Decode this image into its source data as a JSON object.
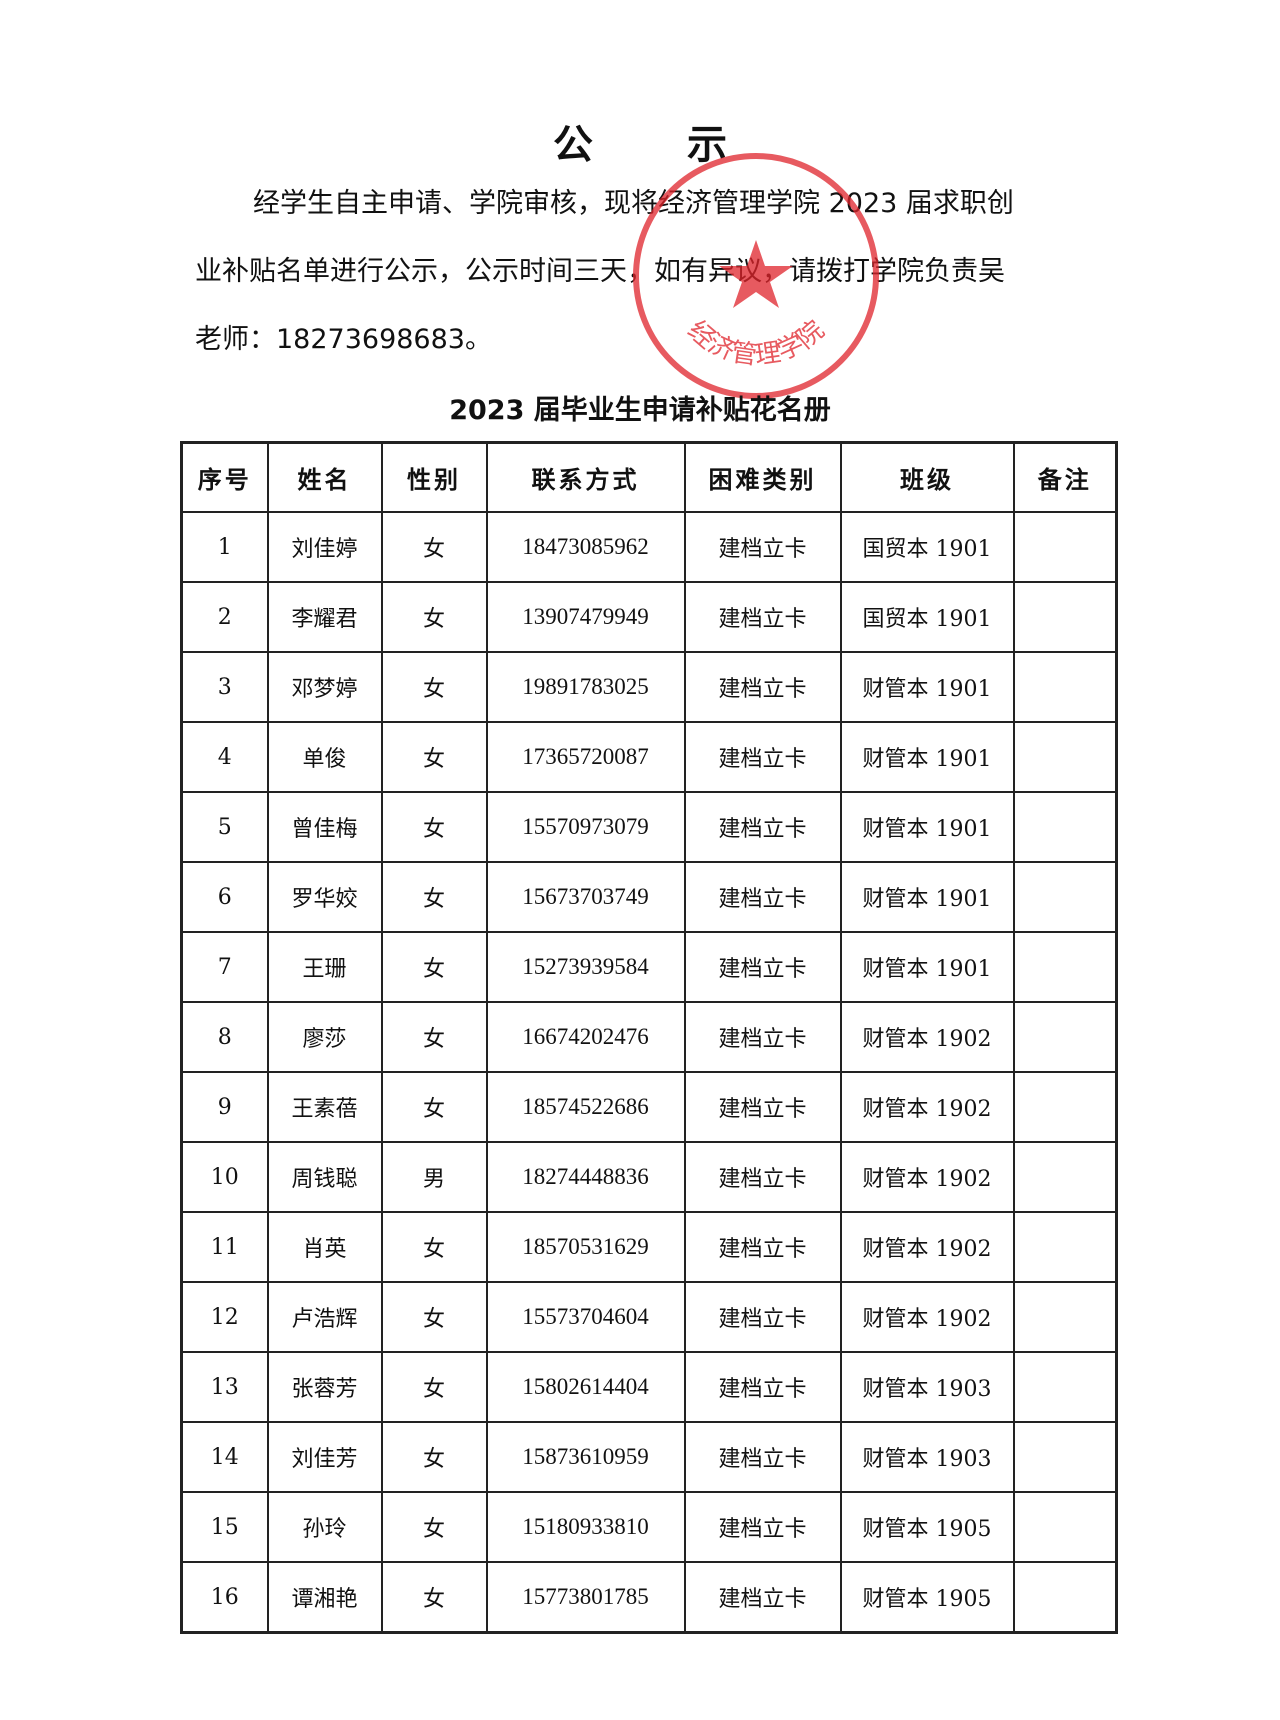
{
  "title": "公 示",
  "notice": {
    "lines": [
      "经学生自主申请、学院审核，现将经济管理学院 2023 届求职创",
      "业补贴名单进行公示，公示时间三天，如有异议，请拨打学院负责吴",
      "老师：18273698683。"
    ]
  },
  "stamp": {
    "text": "经济管理学院",
    "color": "#e0242b",
    "icon": "star-icon"
  },
  "table": {
    "title": "2023 届毕业生申请补贴花名册",
    "headers": [
      "序号",
      "姓名",
      "性别",
      "联系方式",
      "困难类别",
      "班级",
      "备注"
    ],
    "rows": [
      [
        "1",
        "刘佳婷",
        "女",
        "18473085962",
        "建档立卡",
        "国贸本 1901",
        ""
      ],
      [
        "2",
        "李耀君",
        "女",
        "13907479949",
        "建档立卡",
        "国贸本 1901",
        ""
      ],
      [
        "3",
        "邓梦婷",
        "女",
        "19891783025",
        "建档立卡",
        "财管本 1901",
        ""
      ],
      [
        "4",
        "单俊",
        "女",
        "17365720087",
        "建档立卡",
        "财管本 1901",
        ""
      ],
      [
        "5",
        "曾佳梅",
        "女",
        "15570973079",
        "建档立卡",
        "财管本 1901",
        ""
      ],
      [
        "6",
        "罗华姣",
        "女",
        "15673703749",
        "建档立卡",
        "财管本 1901",
        ""
      ],
      [
        "7",
        "王珊",
        "女",
        "15273939584",
        "建档立卡",
        "财管本 1901",
        ""
      ],
      [
        "8",
        "廖莎",
        "女",
        "16674202476",
        "建档立卡",
        "财管本 1902",
        ""
      ],
      [
        "9",
        "王素蓓",
        "女",
        "18574522686",
        "建档立卡",
        "财管本 1902",
        ""
      ],
      [
        "10",
        "周钱聪",
        "男",
        "18274448836",
        "建档立卡",
        "财管本 1902",
        ""
      ],
      [
        "11",
        "肖英",
        "女",
        "18570531629",
        "建档立卡",
        "财管本 1902",
        ""
      ],
      [
        "12",
        "卢浩辉",
        "女",
        "15573704604",
        "建档立卡",
        "财管本 1902",
        ""
      ],
      [
        "13",
        "张蓉芳",
        "女",
        "15802614404",
        "建档立卡",
        "财管本 1903",
        ""
      ],
      [
        "14",
        "刘佳芳",
        "女",
        "15873610959",
        "建档立卡",
        "财管本 1903",
        ""
      ],
      [
        "15",
        "孙玲",
        "女",
        "15180933810",
        "建档立卡",
        "财管本 1905",
        ""
      ],
      [
        "16",
        "谭湘艳",
        "女",
        "15773801785",
        "建档立卡",
        "财管本 1905",
        ""
      ]
    ]
  }
}
